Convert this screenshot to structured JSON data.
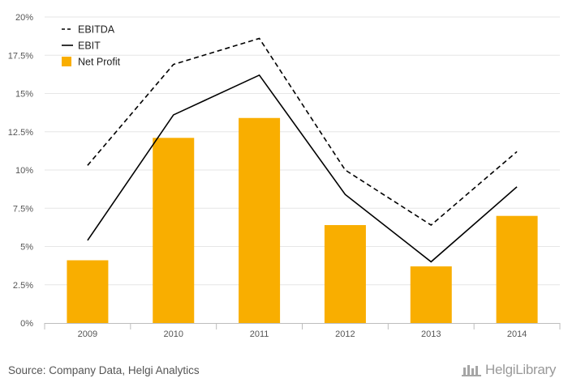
{
  "chart_data": {
    "type": "bar",
    "categories": [
      "2009",
      "2010",
      "2011",
      "2012",
      "2013",
      "2014"
    ],
    "series": [
      {
        "name": "EBITDA",
        "type": "line",
        "style": "dashed",
        "color": "#000000",
        "values": [
          10.3,
          16.9,
          18.6,
          10.0,
          6.4,
          11.2
        ]
      },
      {
        "name": "EBIT",
        "type": "line",
        "style": "solid",
        "color": "#000000",
        "values": [
          5.4,
          13.6,
          16.2,
          8.4,
          4.0,
          8.9
        ]
      },
      {
        "name": "Net Profit",
        "type": "bar",
        "color": "#F9AE00",
        "values": [
          4.1,
          12.1,
          13.4,
          6.4,
          3.7,
          7.0
        ]
      }
    ],
    "y_ticks": [
      "0%",
      "2.5%",
      "5%",
      "7.5%",
      "10%",
      "12.5%",
      "15%",
      "17.5%",
      "20%"
    ],
    "ylim": [
      0,
      20
    ],
    "grid": true,
    "legend_position": "top-left"
  },
  "footer": {
    "source": "Source: Company Data, Helgi Analytics",
    "brand": "HelgiLibrary"
  }
}
